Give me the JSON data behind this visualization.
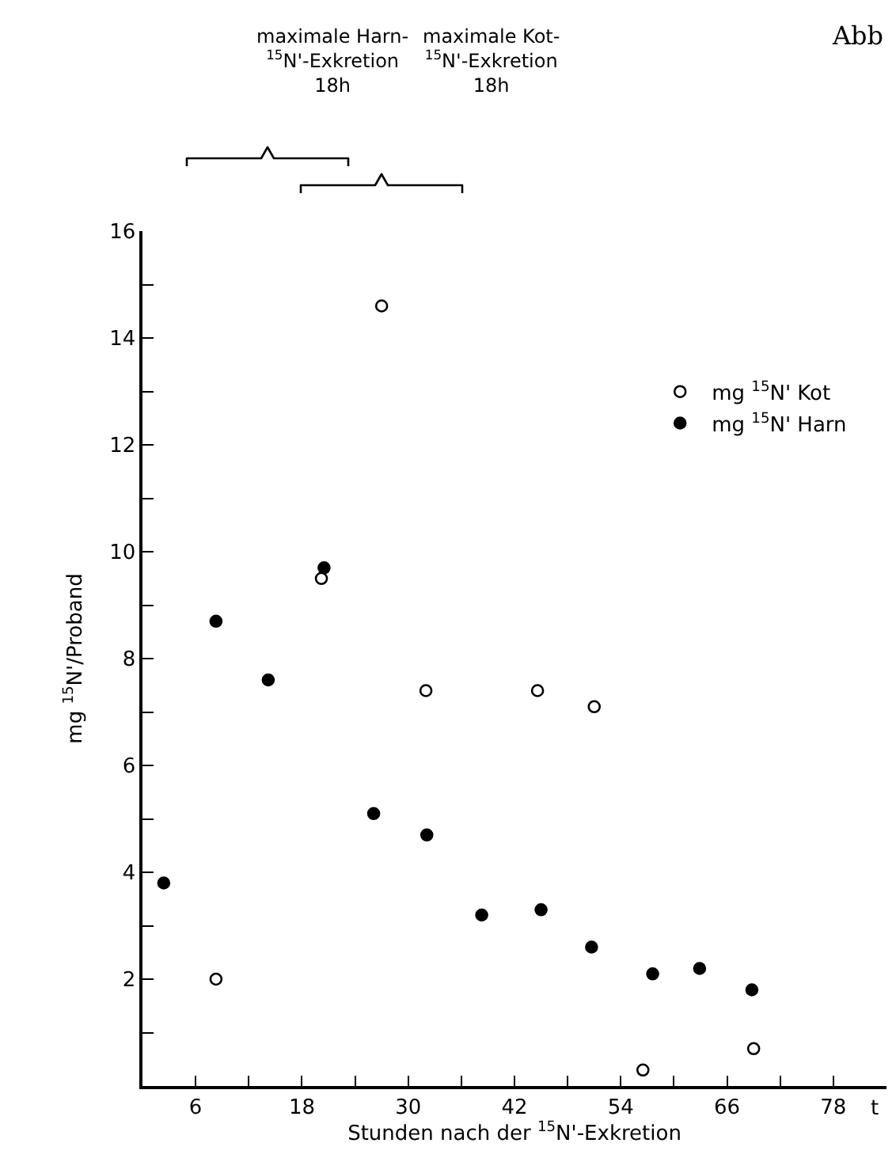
{
  "chart_data": {
    "type": "scatter",
    "xlabel": "Stunden nach der $^{15}$N'-Exkretion",
    "ylabel": "mg $^{15}$N'/Proband",
    "xlim": [
      0,
      84
    ],
    "xticks": [
      6,
      {
        "value": 12,
        "label": null
      },
      18,
      {
        "value": 24,
        "label": null
      },
      30,
      {
        "value": 36,
        "label": null
      },
      42,
      {
        "value": 48,
        "label": null
      },
      54,
      {
        "value": 60,
        "label": null
      },
      66,
      {
        "value": 72,
        "label": null
      },
      78
    ],
    "ylim": [
      0,
      16
    ],
    "yticks": [
      {
        "value": 1,
        "label": null
      },
      2,
      {
        "value": 3,
        "label": null
      },
      4,
      {
        "value": 5,
        "label": null
      },
      6,
      {
        "value": 7,
        "label": null
      },
      8,
      {
        "value": 9,
        "label": null
      },
      10,
      {
        "value": 11,
        "label": null
      },
      12,
      {
        "value": 13,
        "label": null
      },
      14,
      {
        "value": 15,
        "label": null
      },
      16
    ],
    "grid": false,
    "legend": "top right",
    "marker": "circle",
    "series": [
      {
        "name": "mg $^{15}$N' Kot",
        "color": "#ffffff",
        "x": [
          8.3,
          20.2,
          27,
          32,
          44.6,
          51,
          56.5,
          69
        ],
        "values": [
          2.0,
          9.5,
          14.6,
          7.4,
          7.4,
          7.1,
          0.3,
          0.7
        ]
      },
      {
        "name": "mg $^{15}$N' Harn",
        "color": "#000000",
        "x": [
          2.4,
          8.3,
          14.2,
          20.5,
          26.1,
          32.1,
          38.3,
          45,
          50.7,
          57.6,
          62.9,
          68.8
        ],
        "values": [
          3.8,
          8.7,
          7.6,
          9.7,
          5.1,
          4.7,
          3.2,
          3.3,
          2.6,
          2.1,
          2.2,
          1.8
        ]
      }
    ],
    "annotations": [
      "maximale Harn-\n$^{15}$N'-Exkretion\n18h",
      "maximale Kot-\n$^{15}$N'-Exkretion\n18h",
      "Abb",
      "t"
    ]
  }
}
